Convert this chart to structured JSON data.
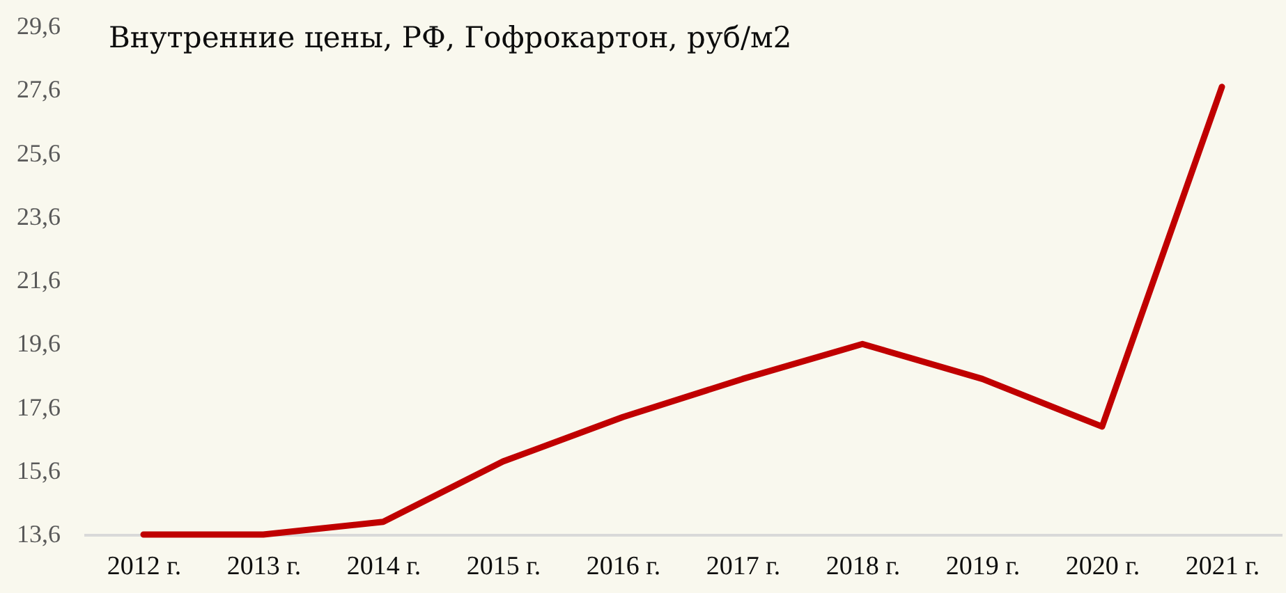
{
  "chart_data": {
    "type": "line",
    "title": "Внутренние цены, РФ, Гофрокартон, руб/м2",
    "categories": [
      "2012 г.",
      "2013 г.",
      "2014 г.",
      "2015 г.",
      "2016 г.",
      "2017 г.",
      "2018 г.",
      "2019 г.",
      "2020 г.",
      "2021 г."
    ],
    "values": [
      13.6,
      13.6,
      14.0,
      15.9,
      17.3,
      18.5,
      19.6,
      18.5,
      17.0,
      27.7
    ],
    "color": "#c00000",
    "line_style": "solid",
    "grid": false,
    "ylim": [
      13.6,
      29.6
    ],
    "yticks": [
      {
        "value": 13.6,
        "label": "13,6"
      },
      {
        "value": 15.6,
        "label": "15,6"
      },
      {
        "value": 17.6,
        "label": "17,6"
      },
      {
        "value": 19.6,
        "label": "19,6"
      },
      {
        "value": 21.6,
        "label": "21,6"
      },
      {
        "value": 23.6,
        "label": "23,6"
      },
      {
        "value": 25.6,
        "label": "25,6"
      },
      {
        "value": 27.6,
        "label": "27,6"
      },
      {
        "value": 29.6,
        "label": "29,6"
      }
    ]
  }
}
